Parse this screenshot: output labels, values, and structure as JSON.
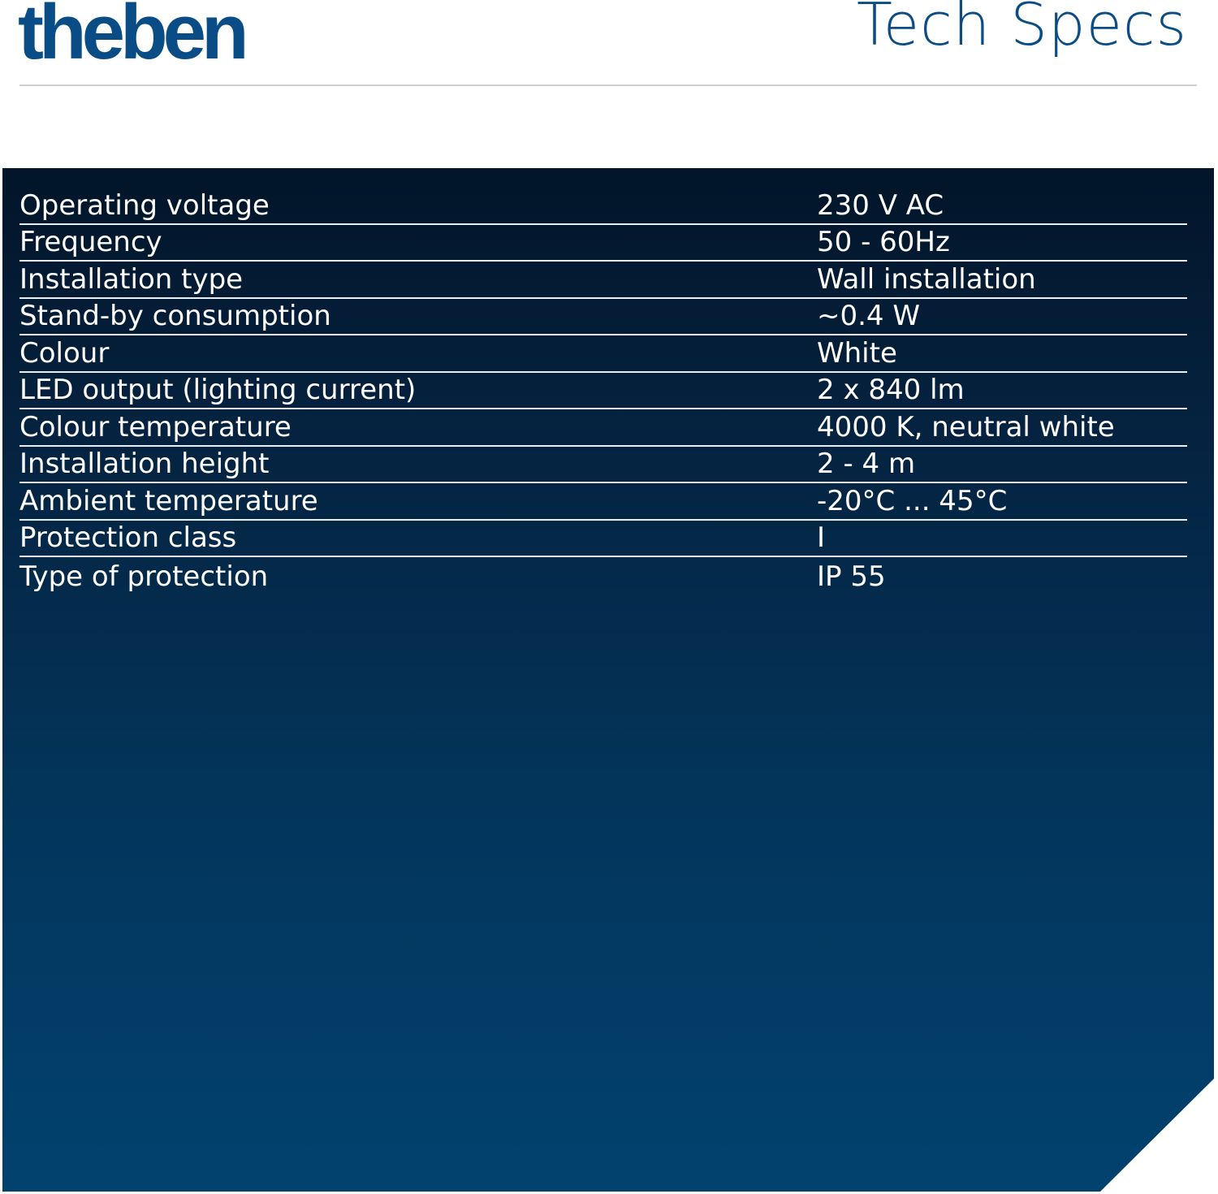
{
  "header": {
    "logo": "theben",
    "title": "Tech Specs"
  },
  "colors": {
    "brand": "#0a4d86",
    "panel_top": "#021529",
    "panel_bottom": "#02426f"
  },
  "specs": [
    {
      "label": "Operating voltage",
      "value": "230 V AC"
    },
    {
      "label": "Frequency",
      "value": "50 - 60Hz"
    },
    {
      "label": "Installation type",
      "value": "Wall installation"
    },
    {
      "label": "Stand-by consumption",
      "value": "~0.4 W"
    },
    {
      "label": "Colour",
      "value": "White"
    },
    {
      "label": "LED output (lighting current)",
      "value": "2 x 840 lm"
    },
    {
      "label": "Colour temperature",
      "value": "4000 K, neutral white"
    },
    {
      "label": "Installation height",
      "value": "2 - 4 m"
    },
    {
      "label": "Ambient temperature",
      "value": "-20°C ... 45°C"
    },
    {
      "label": "Protection class",
      "value": "I"
    },
    {
      "label": "Type of protection",
      "value": "IP 55"
    }
  ]
}
